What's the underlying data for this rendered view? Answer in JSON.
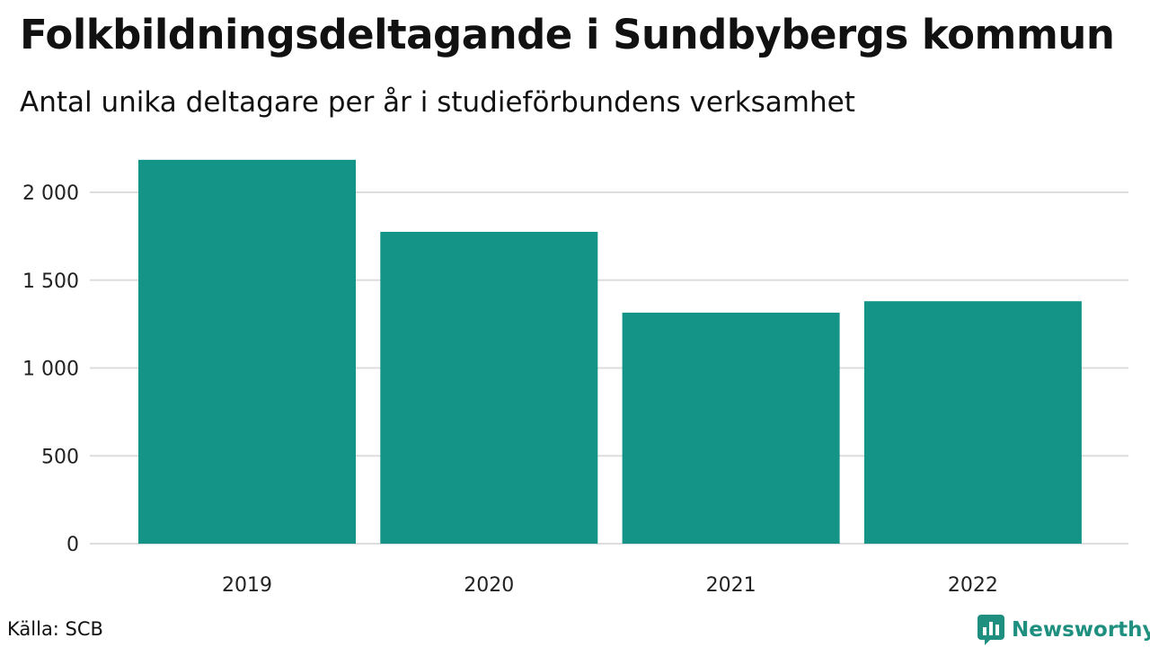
{
  "title": "Folkbildningsdeltagande i Sundbybergs kommun",
  "subtitle": "Antal unika deltagare per år i studieförbundens verksamhet",
  "source": "Källa: SCB",
  "brand": {
    "name": "Newsworthy",
    "icon": "newsworthy-logo-icon",
    "color": "#1f8f80"
  },
  "colors": {
    "bar": "#139487",
    "grid": "#dddddd"
  },
  "chart_data": {
    "type": "bar",
    "categories": [
      "2019",
      "2020",
      "2021",
      "2022"
    ],
    "values": [
      2185,
      1775,
      1315,
      1380
    ],
    "ylim": [
      0,
      2200
    ],
    "yticks": [
      0,
      500,
      1000,
      1500,
      2000
    ],
    "ytick_labels": [
      "0",
      "500",
      "1 000",
      "1 500",
      "2 000"
    ],
    "grid": true,
    "legend": "none"
  }
}
